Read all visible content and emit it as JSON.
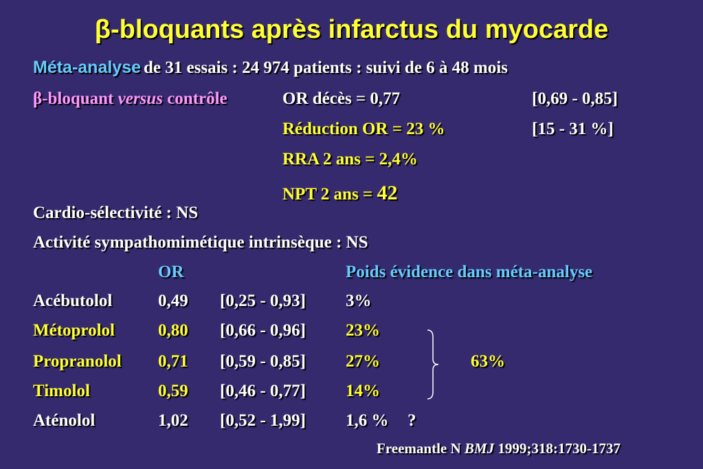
{
  "title": "β-bloquants après infarctus du myocarde",
  "meta": {
    "label": "Méta-analyse",
    "text": "de 31 essais : 24 974 patients : suivi de 6 à 48 mois"
  },
  "comparison": {
    "label_prefix": "β-bloquant ",
    "label_italic": "versus",
    "label_suffix": " contrôle"
  },
  "results": [
    {
      "text": "OR décès = 0,77",
      "ci": "[0,69 - 0,85]"
    },
    {
      "text": "Réduction OR = 23 %",
      "ci": "[15 - 31 %]"
    },
    {
      "text": "RRA 2 ans = 2,4%",
      "ci": ""
    }
  ],
  "npt": {
    "label": "NPT 2 ans = ",
    "value": "42"
  },
  "notes": [
    "Cardio-sélectivité : NS",
    "Activité sympathomimétique intrinsèque : NS"
  ],
  "table": {
    "headers": {
      "or": "OR",
      "weight": "Poids évidence dans méta-analyse"
    },
    "rows": [
      {
        "drug": "Acébutolol",
        "or": "0,49",
        "ci": "[0,25 - 0,93]",
        "weight": "3%",
        "color": "#ffffff"
      },
      {
        "drug": "Métoprolol",
        "or": "0,80",
        "ci": "[0,66 - 0,96]",
        "weight": "23%",
        "color": "#ffff33"
      },
      {
        "drug": "Propranolol",
        "or": "0,71",
        "ci": "[0,59 - 0,85]",
        "weight": "27%",
        "color": "#ffff33"
      },
      {
        "drug": "Timolol",
        "or": "0,59",
        "ci": "[0,46 - 0,77]",
        "weight": "14%",
        "color": "#ffff33"
      },
      {
        "drug": "Aténolol",
        "or": "1,02",
        "ci": "[0,52 - 1,99]",
        "weight": "1,6 %",
        "color": "#ffffff"
      }
    ],
    "group_total": "63%",
    "atenolol_note": "?"
  },
  "reference": {
    "author": "Freemantle N ",
    "journal": "BMJ",
    "details": " 1999;318:1730-1737"
  },
  "colors": {
    "background": "#352a6e",
    "title": "#ffff33",
    "highlight": "#ffff33",
    "cyan": "#66ccff",
    "pink": "#ff99ff"
  }
}
